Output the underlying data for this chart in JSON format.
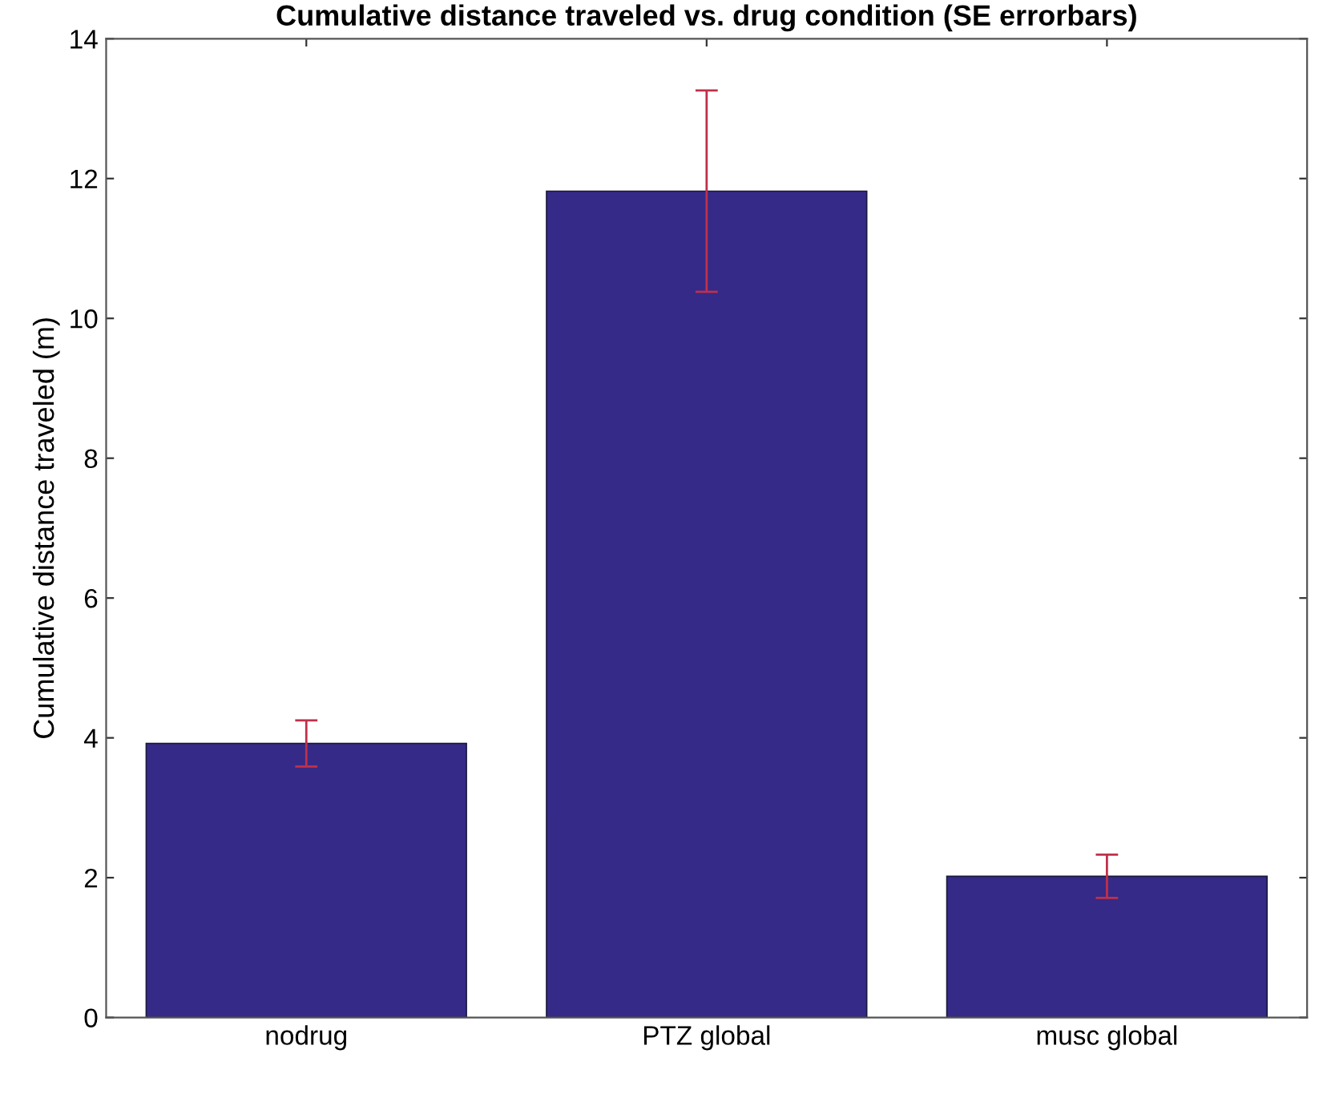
{
  "chart_data": {
    "type": "bar",
    "title": "Cumulative distance traveled vs. drug condition (SE errorbars)",
    "ylabel": "Cumulative distance traveled (m)",
    "categories": [
      "nodrug",
      "PTZ global",
      "musc global"
    ],
    "values": [
      3.92,
      11.82,
      2.02
    ],
    "errors": [
      0.33,
      1.44,
      0.31
    ],
    "color": "#352a87",
    "ylim": [
      0,
      14
    ],
    "yticks": [
      0,
      2,
      4,
      6,
      8,
      10,
      12,
      14
    ],
    "grid": false,
    "legend": false
  }
}
